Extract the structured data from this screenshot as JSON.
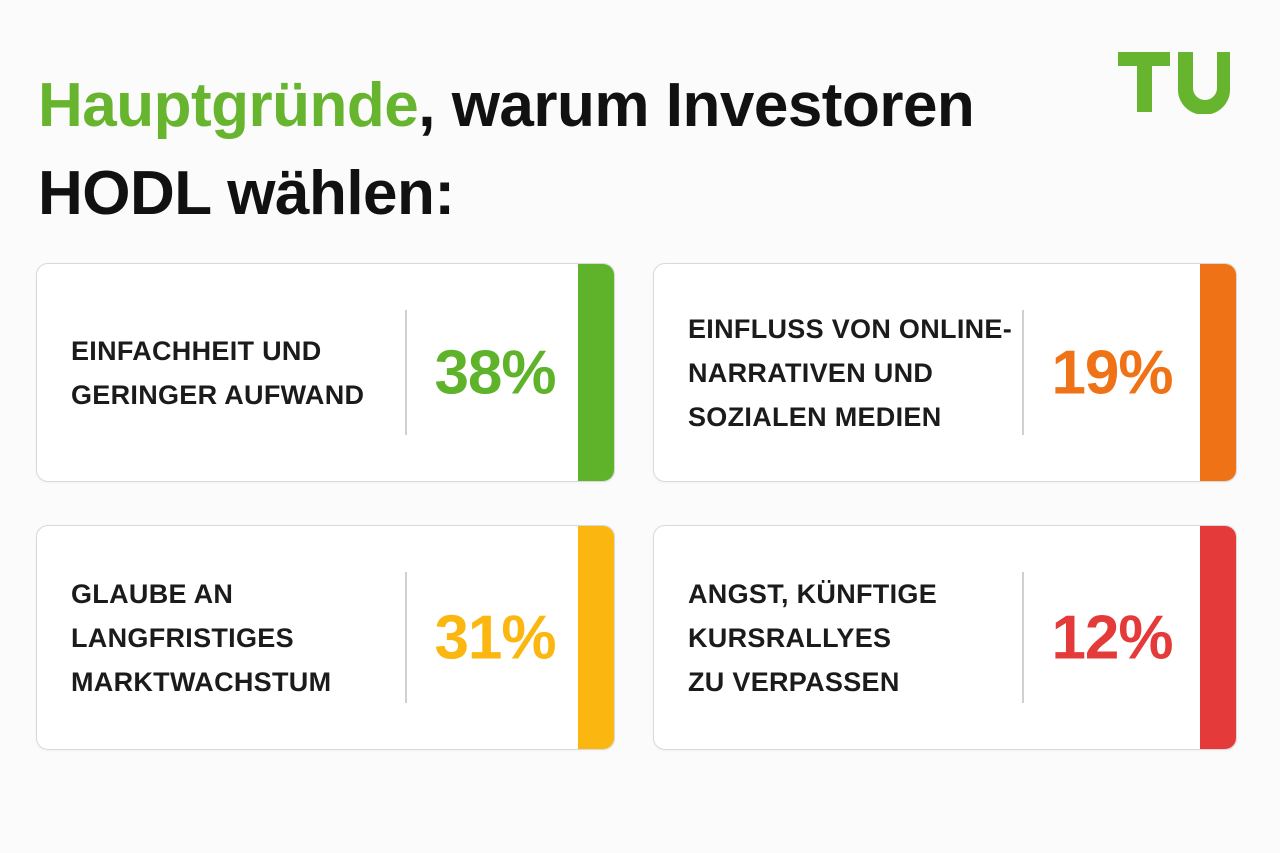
{
  "headline": {
    "highlight": "Hauptgründe",
    "rest_line1": ", warum Investoren",
    "line2": "HODL wählen:",
    "highlight_color": "#67b52e"
  },
  "logo": {
    "text": "TU",
    "color": "#67b52e"
  },
  "cards": [
    {
      "label": "EINFACHHEIT UND\nGERINGER AUFWAND",
      "value": "38%",
      "color": "#5fb32a"
    },
    {
      "label": "EINFLUSS VON ONLINE-\nNARRATIVEN UND\nSOZIALEN MEDIEN",
      "value": "19%",
      "color": "#f07217"
    },
    {
      "label": "GLAUBE AN LANGFRISTIGES\nMARKTWACHSTUM",
      "value": "31%",
      "color": "#fbb60f"
    },
    {
      "label": "ANGST, KÜNFTIGE\nKURSRALLYES\nZU VERPASSEN",
      "value": "12%",
      "color": "#e53a3a"
    }
  ]
}
